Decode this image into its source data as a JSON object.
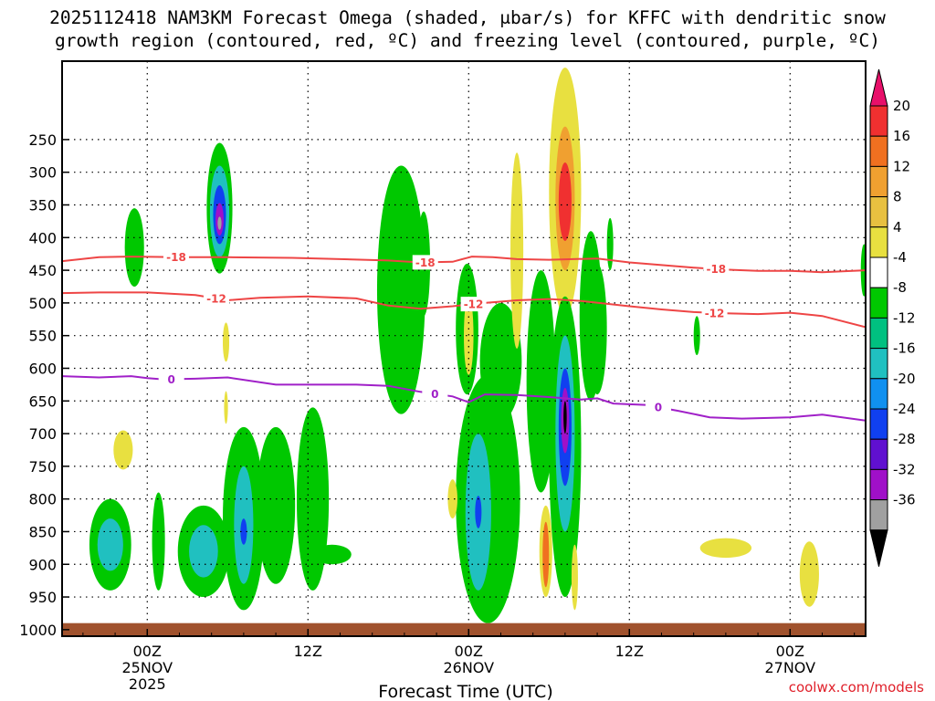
{
  "title": {
    "line1": "2025112418 NAM3KM Forecast Omega (shaded, μbar/s) for KFFC with dendritic snow",
    "line2": "growth region (contoured, red, ºC) and freezing level (contoured, purple, ºC)"
  },
  "credit": "coolwx.com/models",
  "colors": {
    "freezing": "#a020c8",
    "dgz": "#ee4545",
    "ground": "#a0522d"
  },
  "chart_data": {
    "type": "heatmap",
    "x_range_hours": [
      -5.3,
      44.7
    ],
    "y_range_mb": [
      130,
      1010
    ],
    "xlabel": "Forecast Time (UTC)",
    "ylabel": "",
    "y_ticks": [
      250,
      300,
      350,
      400,
      450,
      500,
      550,
      600,
      650,
      700,
      750,
      800,
      850,
      900,
      950,
      1000
    ],
    "x_ticks": [
      {
        "hour": 0,
        "lines": [
          "00Z",
          "25NOV",
          "2025"
        ]
      },
      {
        "hour": 10,
        "lines": [
          "12Z"
        ]
      },
      {
        "hour": 20,
        "lines": [
          "00Z",
          "26NOV"
        ]
      },
      {
        "hour": 30,
        "lines": [
          "12Z"
        ]
      },
      {
        "hour": 40,
        "lines": [
          "00Z",
          "27NOV"
        ]
      }
    ],
    "colorbar": {
      "levels": [
        20,
        16,
        12,
        8,
        4,
        -4,
        -8,
        -12,
        -16,
        -20,
        -24,
        -28,
        -32,
        -36
      ],
      "colors": [
        "#e8106a",
        "#f03030",
        "#f07020",
        "#f0a030",
        "#e8c040",
        "#e8e040",
        "#ffffff",
        "#00c800",
        "#00c080",
        "#20c0c0",
        "#1090f0",
        "#1040f0",
        "#6010d0",
        "#a010c8",
        "#a0a0a0",
        "#000000"
      ]
    },
    "contours": [
      {
        "name": "-18",
        "color": "#ee4545",
        "label": "-18",
        "points": [
          [
            -5.3,
            436
          ],
          [
            -3,
            430
          ],
          [
            -1,
            429
          ],
          [
            2,
            430
          ],
          [
            5,
            430
          ],
          [
            9,
            431
          ],
          [
            12,
            433
          ],
          [
            15,
            435
          ],
          [
            17,
            438
          ],
          [
            19,
            437
          ],
          [
            20.2,
            429
          ],
          [
            21.5,
            430
          ],
          [
            23,
            433
          ],
          [
            25,
            434
          ],
          [
            28,
            432
          ],
          [
            30,
            438
          ],
          [
            32,
            442
          ],
          [
            34,
            446
          ],
          [
            36,
            449
          ],
          [
            38,
            451
          ],
          [
            40,
            451
          ],
          [
            42,
            453
          ],
          [
            44.7,
            450
          ]
        ],
        "label_positions": [
          1.8,
          17.3,
          35.4
        ]
      },
      {
        "name": "-12",
        "color": "#ee4545",
        "label": "-12",
        "points": [
          [
            -5.3,
            485
          ],
          [
            -3,
            484
          ],
          [
            0,
            484
          ],
          [
            3,
            488
          ],
          [
            5,
            496
          ],
          [
            7,
            492
          ],
          [
            10,
            490
          ],
          [
            13,
            493
          ],
          [
            15,
            504
          ],
          [
            17,
            509
          ],
          [
            19,
            505
          ],
          [
            21,
            500
          ],
          [
            23,
            496
          ],
          [
            25,
            494
          ],
          [
            27,
            497
          ],
          [
            30,
            505
          ],
          [
            32,
            510
          ],
          [
            34,
            514
          ],
          [
            36,
            516
          ],
          [
            38,
            517
          ],
          [
            40,
            515
          ],
          [
            42,
            520
          ],
          [
            44.7,
            537
          ]
        ],
        "label_positions": [
          4.3,
          20.3,
          35.3
        ]
      },
      {
        "name": "0",
        "color": "#a020c8",
        "label": "0",
        "points": [
          [
            -5.3,
            612
          ],
          [
            -3,
            614
          ],
          [
            -1,
            612
          ],
          [
            0,
            615
          ],
          [
            1,
            617
          ],
          [
            3,
            616
          ],
          [
            5,
            614
          ],
          [
            8,
            625
          ],
          [
            11,
            625
          ],
          [
            13,
            625
          ],
          [
            15,
            627
          ],
          [
            17,
            636
          ],
          [
            19,
            643
          ],
          [
            20,
            652
          ],
          [
            21,
            640
          ],
          [
            23,
            641
          ],
          [
            25,
            644
          ],
          [
            27,
            648
          ],
          [
            28,
            646
          ],
          [
            29,
            654
          ],
          [
            31,
            656
          ],
          [
            33,
            665
          ],
          [
            35,
            675
          ],
          [
            37,
            677
          ],
          [
            40,
            675
          ],
          [
            42,
            671
          ],
          [
            44.7,
            680
          ]
        ],
        "label_positions": [
          1.5,
          17.9,
          31.8
        ]
      }
    ],
    "shaded_features": [
      {
        "x": -0.8,
        "p": 415,
        "rx": 0.6,
        "rp": 60,
        "color": "#00c800"
      },
      {
        "x": 4.5,
        "p": 355,
        "rx": 0.8,
        "rp": 100,
        "color": "#00c800"
      },
      {
        "x": 4.5,
        "p": 360,
        "rx": 0.6,
        "rp": 70,
        "color": "#20c0c0"
      },
      {
        "x": 4.5,
        "p": 365,
        "rx": 0.4,
        "rp": 45,
        "color": "#1040f0"
      },
      {
        "x": 4.5,
        "p": 372,
        "rx": 0.25,
        "rp": 25,
        "color": "#a010c8"
      },
      {
        "x": 4.5,
        "p": 378,
        "rx": 0.12,
        "rp": 10,
        "color": "#a0a0a0"
      },
      {
        "x": 4.9,
        "p": 560,
        "rx": 0.2,
        "rp": 30,
        "color": "#e8e040"
      },
      {
        "x": 4.9,
        "p": 660,
        "rx": 0.12,
        "rp": 25,
        "color": "#e8e040"
      },
      {
        "x": -1.5,
        "p": 725,
        "rx": 0.6,
        "rp": 30,
        "color": "#e8e040"
      },
      {
        "x": -2.3,
        "p": 870,
        "rx": 1.3,
        "rp": 70,
        "color": "#00c800"
      },
      {
        "x": -2.3,
        "p": 870,
        "rx": 0.8,
        "rp": 40,
        "color": "#20c0c0"
      },
      {
        "x": 0.7,
        "p": 865,
        "rx": 0.4,
        "rp": 75,
        "color": "#00c800"
      },
      {
        "x": 3.5,
        "p": 880,
        "rx": 1.6,
        "rp": 70,
        "color": "#00c800"
      },
      {
        "x": 3.5,
        "p": 880,
        "rx": 0.9,
        "rp": 40,
        "color": "#20c0c0"
      },
      {
        "x": 6.0,
        "p": 830,
        "rx": 1.3,
        "rp": 140,
        "color": "#00c800"
      },
      {
        "x": 6.0,
        "p": 840,
        "rx": 0.6,
        "rp": 90,
        "color": "#20c0c0"
      },
      {
        "x": 6.0,
        "p": 850,
        "rx": 0.2,
        "rp": 20,
        "color": "#1040f0"
      },
      {
        "x": 8.0,
        "p": 810,
        "rx": 1.2,
        "rp": 120,
        "color": "#00c800"
      },
      {
        "x": 10.3,
        "p": 800,
        "rx": 1.0,
        "rp": 140,
        "color": "#00c800"
      },
      {
        "x": 11.5,
        "p": 885,
        "rx": 1.2,
        "rp": 15,
        "color": "#00c800"
      },
      {
        "x": 15.8,
        "p": 480,
        "rx": 1.5,
        "rp": 190,
        "color": "#00c800"
      },
      {
        "x": 17.2,
        "p": 440,
        "rx": 0.4,
        "rp": 80,
        "color": "#00c800"
      },
      {
        "x": 19.9,
        "p": 540,
        "rx": 0.7,
        "rp": 100,
        "color": "#00c800"
      },
      {
        "x": 20.0,
        "p": 550,
        "rx": 0.3,
        "rp": 60,
        "color": "#e8e040"
      },
      {
        "x": 21.2,
        "p": 800,
        "rx": 2.0,
        "rp": 190,
        "color": "#00c800"
      },
      {
        "x": 20.6,
        "p": 820,
        "rx": 0.8,
        "rp": 120,
        "color": "#20c0c0"
      },
      {
        "x": 20.6,
        "p": 820,
        "rx": 0.2,
        "rp": 25,
        "color": "#1040f0"
      },
      {
        "x": 22.0,
        "p": 590,
        "rx": 1.3,
        "rp": 90,
        "color": "#00c800"
      },
      {
        "x": 19.0,
        "p": 800,
        "rx": 0.3,
        "rp": 30,
        "color": "#e8e040"
      },
      {
        "x": 23.0,
        "p": 420,
        "rx": 0.4,
        "rp": 150,
        "color": "#e8e040"
      },
      {
        "x": 24.5,
        "p": 620,
        "rx": 0.9,
        "rp": 170,
        "color": "#00c800"
      },
      {
        "x": 24.8,
        "p": 880,
        "rx": 0.4,
        "rp": 70,
        "color": "#e8e040"
      },
      {
        "x": 24.8,
        "p": 885,
        "rx": 0.2,
        "rp": 50,
        "color": "#f07020"
      },
      {
        "x": 26.0,
        "p": 330,
        "rx": 1.0,
        "rp": 190,
        "color": "#e8e040"
      },
      {
        "x": 26.0,
        "p": 340,
        "rx": 0.6,
        "rp": 110,
        "color": "#f0a030"
      },
      {
        "x": 26.0,
        "p": 345,
        "rx": 0.4,
        "rp": 60,
        "color": "#f03030"
      },
      {
        "x": 26.0,
        "p": 720,
        "rx": 1.0,
        "rp": 230,
        "color": "#00c800"
      },
      {
        "x": 26.0,
        "p": 700,
        "rx": 0.6,
        "rp": 150,
        "color": "#20c0c0"
      },
      {
        "x": 26.0,
        "p": 690,
        "rx": 0.4,
        "rp": 90,
        "color": "#1040f0"
      },
      {
        "x": 26.0,
        "p": 680,
        "rx": 0.25,
        "rp": 50,
        "color": "#a010c8"
      },
      {
        "x": 26.0,
        "p": 675,
        "rx": 0.1,
        "rp": 25,
        "color": "#000000"
      },
      {
        "x": 27.6,
        "p": 520,
        "rx": 0.7,
        "rp": 130,
        "color": "#00c800"
      },
      {
        "x": 28.0,
        "p": 540,
        "rx": 0.6,
        "rp": 100,
        "color": "#00c800"
      },
      {
        "x": 26.6,
        "p": 920,
        "rx": 0.2,
        "rp": 50,
        "color": "#e8e040"
      },
      {
        "x": 28.8,
        "p": 410,
        "rx": 0.2,
        "rp": 40,
        "color": "#00c800"
      },
      {
        "x": 34.2,
        "p": 550,
        "rx": 0.2,
        "rp": 30,
        "color": "#00c800"
      },
      {
        "x": 36.0,
        "p": 875,
        "rx": 1.6,
        "rp": 15,
        "color": "#e8e040"
      },
      {
        "x": 41.2,
        "p": 915,
        "rx": 0.6,
        "rp": 50,
        "color": "#e8e040"
      },
      {
        "x": 44.6,
        "p": 450,
        "rx": 0.2,
        "rp": 40,
        "color": "#00c800"
      }
    ],
    "ground_pressure": 990
  }
}
